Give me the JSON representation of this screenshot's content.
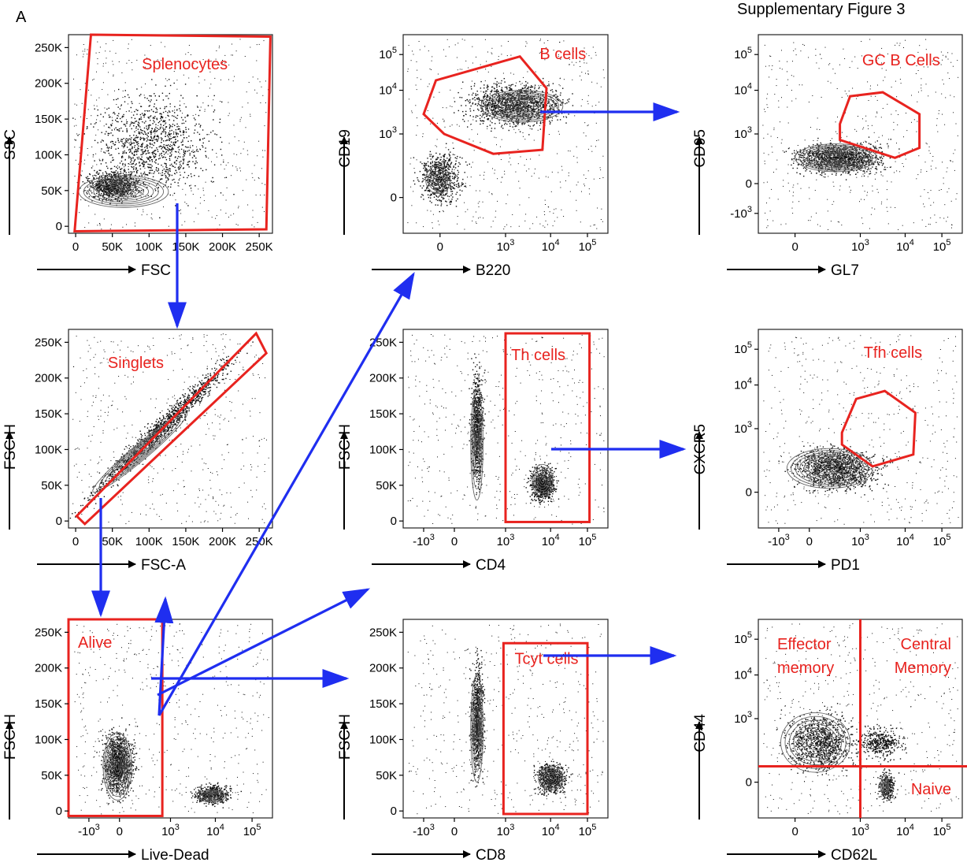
{
  "panel_letter": "A",
  "figure_title": "Supplementary Figure 3",
  "chart_data": [
    {
      "type": "scatter",
      "row": 0,
      "col": 0,
      "xlabel": "FSC",
      "ylabel": "SSC",
      "x_ticks": [
        "0",
        "50K",
        "100K",
        "150K",
        "200K",
        "250K"
      ],
      "y_ticks": [
        "0",
        "50K",
        "100K",
        "150K",
        "200K",
        "250K"
      ],
      "gates": [
        "Splenocytes"
      ]
    },
    {
      "type": "scatter",
      "row": 0,
      "col": 1,
      "xlabel": "B220",
      "ylabel": "CD19",
      "x_ticks": [
        "0",
        "10^3",
        "10^4",
        "10^5"
      ],
      "y_ticks": [
        "0",
        "10^3",
        "10^4",
        "10^5"
      ],
      "gates": [
        "B cells"
      ]
    },
    {
      "type": "scatter",
      "row": 0,
      "col": 2,
      "xlabel": "GL7",
      "ylabel": "CD95",
      "x_ticks": [
        "0",
        "10^3",
        "10^4",
        "10^5"
      ],
      "y_ticks": [
        "-10^3",
        "0",
        "10^3",
        "10^4",
        "10^5"
      ],
      "gates": [
        "GC B Cells"
      ]
    },
    {
      "type": "scatter",
      "row": 1,
      "col": 0,
      "xlabel": "FSC-A",
      "ylabel": "FSC-H",
      "x_ticks": [
        "0",
        "50K",
        "100K",
        "150K",
        "200K",
        "250K"
      ],
      "y_ticks": [
        "0",
        "50K",
        "100K",
        "150K",
        "200K",
        "250K"
      ],
      "gates": [
        "Singlets"
      ]
    },
    {
      "type": "scatter",
      "row": 1,
      "col": 1,
      "xlabel": "CD4",
      "ylabel": "FSC-H",
      "x_ticks": [
        "-10^3",
        "0",
        "10^3",
        "10^4",
        "10^5"
      ],
      "y_ticks": [
        "0",
        "50K",
        "100K",
        "150K",
        "200K",
        "250K"
      ],
      "gates": [
        "Th cells"
      ]
    },
    {
      "type": "scatter",
      "row": 1,
      "col": 2,
      "xlabel": "PD1",
      "ylabel": "CXCR5",
      "x_ticks": [
        "-10^3",
        "0",
        "10^3",
        "10^4",
        "10^5"
      ],
      "y_ticks": [
        "0",
        "10^3",
        "10^4",
        "10^5"
      ],
      "gates": [
        "Tfh cells"
      ]
    },
    {
      "type": "scatter",
      "row": 2,
      "col": 0,
      "xlabel": "Live-Dead",
      "ylabel": "FSC-H",
      "x_ticks": [
        "-10^3",
        "0",
        "10^3",
        "10^4",
        "10^5"
      ],
      "y_ticks": [
        "0",
        "50K",
        "100K",
        "150K",
        "200K",
        "250K"
      ],
      "gates": [
        "Alive"
      ]
    },
    {
      "type": "scatter",
      "row": 2,
      "col": 1,
      "xlabel": "CD8",
      "ylabel": "FSC-H",
      "x_ticks": [
        "-10^3",
        "0",
        "10^3",
        "10^4",
        "10^5"
      ],
      "y_ticks": [
        "0",
        "50K",
        "100K",
        "150K",
        "200K",
        "250K"
      ],
      "gates": [
        "Tcyt cells"
      ]
    },
    {
      "type": "scatter",
      "row": 2,
      "col": 2,
      "xlabel": "CD62L",
      "ylabel": "CD44",
      "x_ticks": [
        "0",
        "10^3",
        "10^4",
        "10^5"
      ],
      "y_ticks": [
        "0",
        "10^3",
        "10^4",
        "10^5"
      ],
      "gates": [
        "Effector memory",
        "Central Memory",
        "Naive"
      ]
    }
  ],
  "colors": {
    "gate": "#e8231f",
    "arrow": "#1f2ef0",
    "dots": "#111111",
    "contour": "#666666"
  }
}
